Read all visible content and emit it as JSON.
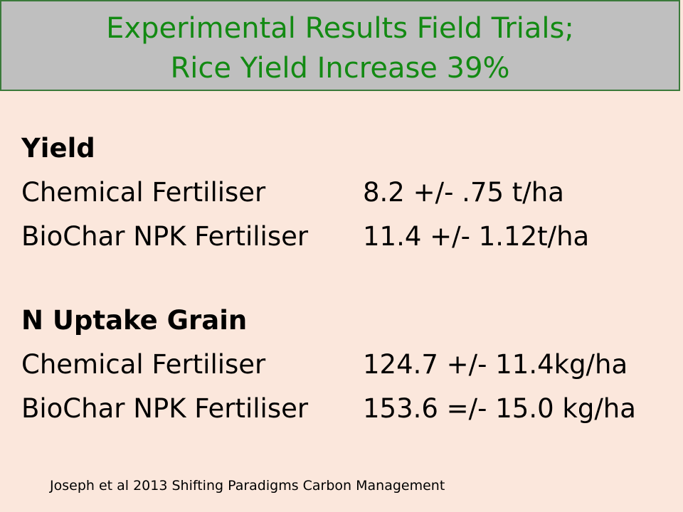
{
  "header": {
    "title_lines": [
      "Experimental Results Field Trials;",
      "Rice Yield Increase 39%"
    ]
  },
  "sections": [
    {
      "heading": "Yield",
      "rows": [
        [
          "Chemical Fertiliser",
          "8.2 +/- .75 t/ha"
        ],
        [
          "BioChar NPK Fertiliser",
          "11.4 +/- 1.12t/ha"
        ]
      ]
    },
    {
      "heading": "N Uptake Grain",
      "rows": [
        [
          "Chemical Fertiliser",
          "124.7 +/- 11.4kg/ha"
        ],
        [
          "BioChar NPK Fertiliser",
          "153.6 =/- 15.0 kg/ha"
        ]
      ]
    }
  ],
  "citation": "Joseph et al 2013 Shifting Paradigms Carbon Management"
}
